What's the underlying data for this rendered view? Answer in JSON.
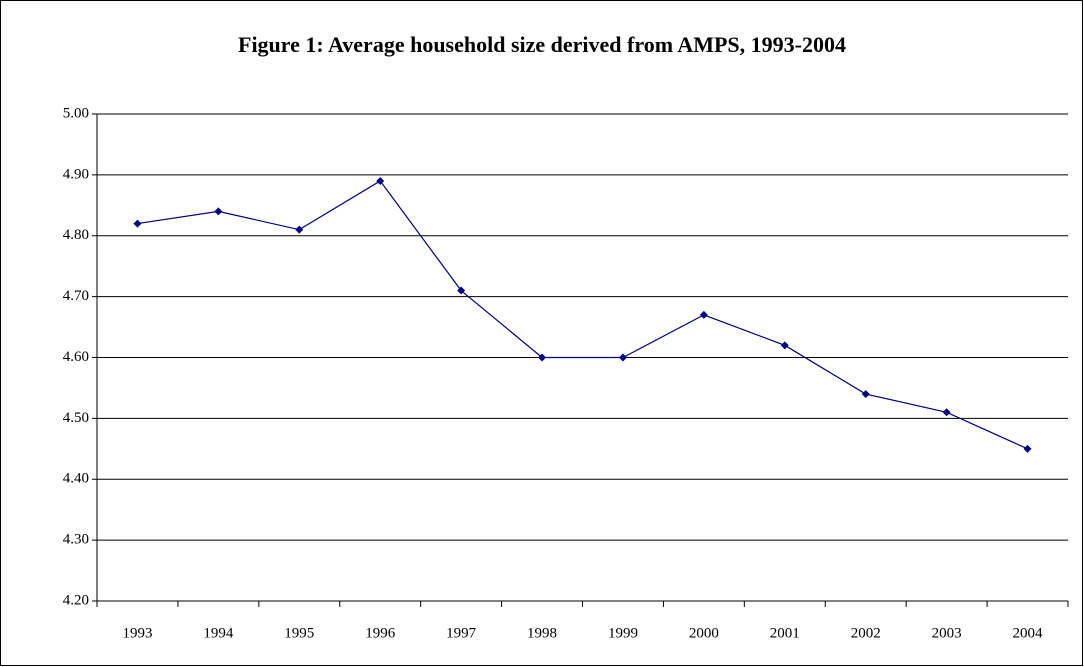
{
  "chart_data": {
    "type": "line",
    "title": "Figure 1: Average household size derived from AMPS, 1993-2004",
    "categories": [
      "1993",
      "1994",
      "1995",
      "1996",
      "1997",
      "1998",
      "1999",
      "2000",
      "2001",
      "2002",
      "2003",
      "2004"
    ],
    "values": [
      4.82,
      4.84,
      4.81,
      4.89,
      4.71,
      4.6,
      4.6,
      4.67,
      4.62,
      4.54,
      4.51,
      4.45
    ],
    "color": "#000080",
    "ylim": [
      4.2,
      5.0
    ],
    "yticks": [
      {
        "value": 4.2,
        "label": "4.20"
      },
      {
        "value": 4.3,
        "label": "4.30"
      },
      {
        "value": 4.4,
        "label": "4.40"
      },
      {
        "value": 4.5,
        "label": "4.50"
      },
      {
        "value": 4.6,
        "label": "4.60"
      },
      {
        "value": 4.7,
        "label": "4.70"
      },
      {
        "value": 4.8,
        "label": "4.80"
      },
      {
        "value": 4.9,
        "label": "4.90"
      },
      {
        "value": 5.0,
        "label": "5.00"
      }
    ],
    "grid": true
  }
}
